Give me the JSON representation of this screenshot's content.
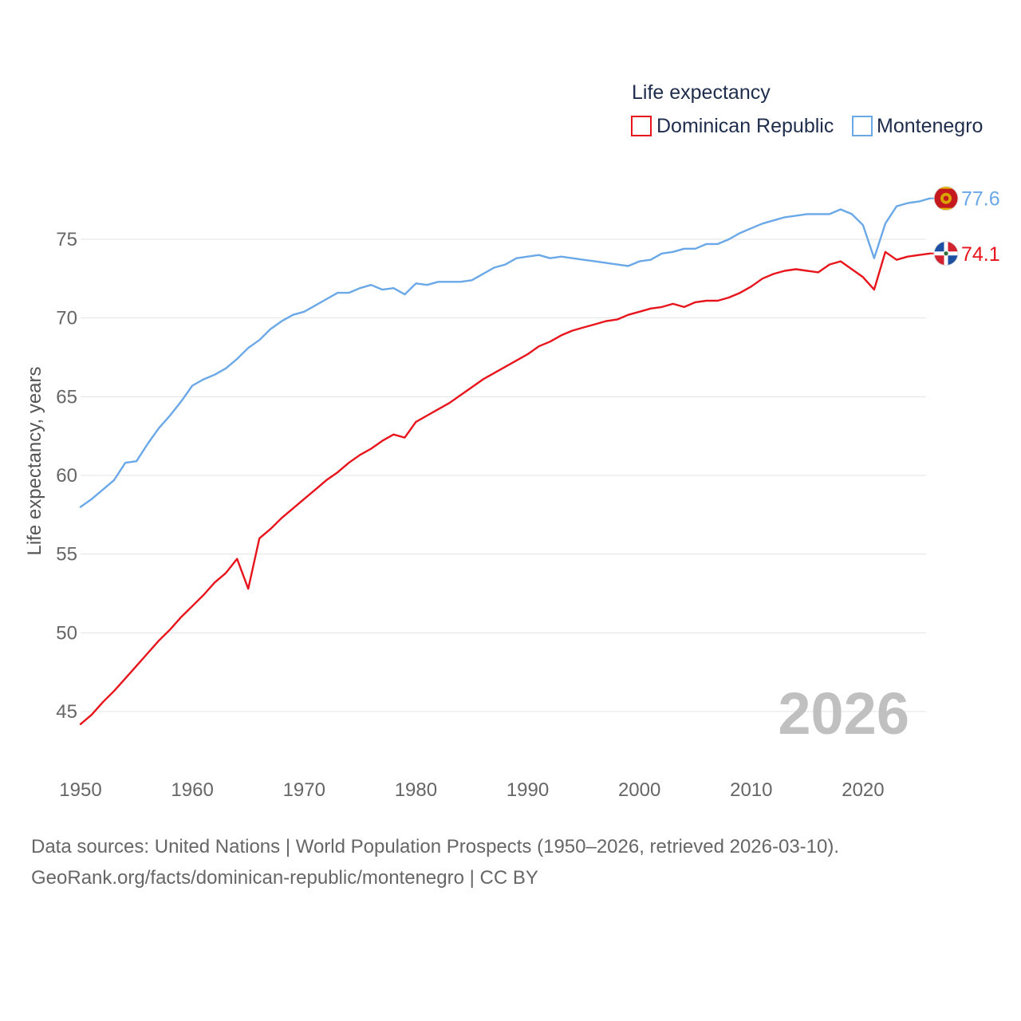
{
  "chart_data": {
    "type": "line",
    "legend_title": "Life expectancy",
    "ylabel": "Life expectancy, years",
    "xlim": [
      1950,
      2026
    ],
    "ylim": [
      43,
      79.5
    ],
    "x_ticks": [
      1950,
      1960,
      1970,
      1980,
      1990,
      2000,
      2010,
      2020
    ],
    "y_ticks": [
      45,
      50,
      55,
      60,
      65,
      70,
      75
    ],
    "year_overlay": "2026",
    "series": [
      {
        "name": "Dominican Republic",
        "color": "#e8141c",
        "flag": "dominican-republic",
        "end_label": "74.1",
        "x": [
          1950,
          1951,
          1952,
          1953,
          1954,
          1955,
          1956,
          1957,
          1958,
          1959,
          1960,
          1961,
          1962,
          1963,
          1964,
          1965,
          1966,
          1967,
          1968,
          1969,
          1970,
          1971,
          1972,
          1973,
          1974,
          1975,
          1976,
          1977,
          1978,
          1979,
          1980,
          1981,
          1982,
          1983,
          1984,
          1985,
          1986,
          1987,
          1988,
          1989,
          1990,
          1991,
          1992,
          1993,
          1994,
          1995,
          1996,
          1997,
          1998,
          1999,
          2000,
          2001,
          2002,
          2003,
          2004,
          2005,
          2006,
          2007,
          2008,
          2009,
          2010,
          2011,
          2012,
          2013,
          2014,
          2015,
          2016,
          2017,
          2018,
          2019,
          2020,
          2021,
          2022,
          2023,
          2024,
          2025,
          2026
        ],
        "values": [
          44.2,
          44.8,
          45.6,
          46.3,
          47.1,
          47.9,
          48.7,
          49.5,
          50.2,
          51.0,
          51.7,
          52.4,
          53.2,
          53.8,
          54.7,
          52.8,
          56.0,
          56.6,
          57.3,
          57.9,
          58.5,
          59.1,
          59.7,
          60.2,
          60.8,
          61.3,
          61.7,
          62.2,
          62.6,
          62.4,
          63.4,
          63.8,
          64.2,
          64.6,
          65.1,
          65.6,
          66.1,
          66.5,
          66.9,
          67.3,
          67.7,
          68.2,
          68.5,
          68.9,
          69.2,
          69.4,
          69.6,
          69.8,
          69.9,
          70.2,
          70.4,
          70.6,
          70.7,
          70.9,
          70.7,
          71.0,
          71.1,
          71.1,
          71.3,
          71.6,
          72.0,
          72.5,
          72.8,
          73.0,
          73.1,
          73.0,
          72.9,
          73.4,
          73.6,
          73.1,
          72.6,
          71.8,
          74.2,
          73.7,
          73.9,
          74.0,
          74.1
        ]
      },
      {
        "name": "Montenegro",
        "color": "#6aa8e8",
        "flag": "montenegro",
        "end_label": "77.6",
        "x": [
          1950,
          1951,
          1952,
          1953,
          1954,
          1955,
          1956,
          1957,
          1958,
          1959,
          1960,
          1961,
          1962,
          1963,
          1964,
          1965,
          1966,
          1967,
          1968,
          1969,
          1970,
          1971,
          1972,
          1973,
          1974,
          1975,
          1976,
          1977,
          1978,
          1979,
          1980,
          1981,
          1982,
          1983,
          1984,
          1985,
          1986,
          1987,
          1988,
          1989,
          1990,
          1991,
          1992,
          1993,
          1994,
          1995,
          1996,
          1997,
          1998,
          1999,
          2000,
          2001,
          2002,
          2003,
          2004,
          2005,
          2006,
          2007,
          2008,
          2009,
          2010,
          2011,
          2012,
          2013,
          2014,
          2015,
          2016,
          2017,
          2018,
          2019,
          2020,
          2021,
          2022,
          2023,
          2024,
          2025,
          2026
        ],
        "values": [
          58.0,
          58.5,
          59.1,
          59.7,
          60.8,
          60.9,
          62.0,
          63.0,
          63.8,
          64.7,
          65.7,
          66.1,
          66.4,
          66.8,
          67.4,
          68.1,
          68.6,
          69.3,
          69.8,
          70.2,
          70.4,
          70.8,
          71.2,
          71.6,
          71.6,
          71.9,
          72.1,
          71.8,
          71.9,
          71.5,
          72.2,
          72.1,
          72.3,
          72.3,
          72.3,
          72.4,
          72.8,
          73.2,
          73.4,
          73.8,
          73.9,
          74.0,
          73.8,
          73.9,
          73.8,
          73.7,
          73.6,
          73.5,
          73.4,
          73.3,
          73.6,
          73.7,
          74.1,
          74.2,
          74.4,
          74.4,
          74.7,
          74.7,
          75.0,
          75.4,
          75.7,
          76.0,
          76.2,
          76.4,
          76.5,
          76.6,
          76.6,
          76.6,
          76.9,
          76.6,
          75.9,
          73.8,
          76.0,
          77.1,
          77.3,
          77.4,
          77.6
        ]
      }
    ]
  },
  "footer": {
    "line1": "Data sources: United Nations | World Population Prospects (1950–2026, retrieved 2026-03-10).",
    "line2": "GeoRank.org/facts/dominican-republic/montenegro | CC BY"
  }
}
